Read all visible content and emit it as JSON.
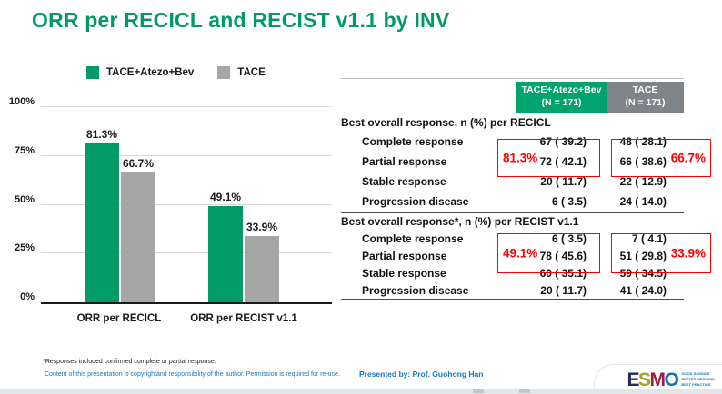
{
  "slide": {
    "title": "ORR per RECICL and RECIST v1.1 by INV",
    "footnote": "*Responses included confirmed complete or partial response.",
    "copyright": "Content of this presentation is copyrightand responsibility of the author. Permission is required for re-use.",
    "presented_by": "Presented by: Prof. Guohong Han"
  },
  "colors": {
    "title_green": "#009A62",
    "bar_green": "#009B66",
    "bar_gray": "#A6A6A6",
    "header_green": "#00A36D",
    "header_gray": "#7E8487",
    "highlight_red": "#FB0000",
    "footer_blue": "#1879C0"
  },
  "chart_data": {
    "type": "bar",
    "title": "",
    "categories": [
      "ORR per RECICL",
      "ORR per RECIST v1.1"
    ],
    "series": [
      {
        "name": "TACE+Atezo+Bev",
        "color": "#009B66",
        "values": [
          81.3,
          49.1
        ],
        "labels": [
          "81.3%",
          "49.1%"
        ]
      },
      {
        "name": "TACE",
        "color": "#A6A6A6",
        "values": [
          66.7,
          33.9
        ],
        "labels": [
          "66.7%",
          "33.9%"
        ]
      }
    ],
    "xlabel": "",
    "ylabel": "",
    "ylim": [
      0,
      100
    ],
    "ytick_values": [
      0,
      25,
      50,
      75,
      100
    ],
    "yticks": [
      "0%",
      "25%",
      "50%",
      "75%",
      "100%"
    ],
    "grid": true,
    "legend_position": "top"
  },
  "table": {
    "header": {
      "arm1_line1": "TACE+Atezo+Bev",
      "arm1_line2": "(N = 171)",
      "arm2_line1": "TACE",
      "arm2_line2": "(N = 171)"
    },
    "sections": [
      {
        "title": "Best overall response, n (%) per RECICL",
        "rows": [
          {
            "label": "Complete response",
            "v1": "67 ( 39.2)",
            "v2": "48 ( 28.1)"
          },
          {
            "label": "Partial response",
            "v1": "72 ( 42.1)",
            "v2": "66 ( 38.6)"
          },
          {
            "label": "Stable response",
            "v1": "20 ( 11.7)",
            "v2": "22 ( 12.9)"
          },
          {
            "label": "Progression disease",
            "v1": "6 ( 3.5)",
            "v2": "24 ( 14.0)"
          }
        ],
        "orr_arm1": "81.3%",
        "orr_arm2": "66.7%"
      },
      {
        "title": "Best overall response*, n (%) per RECIST v1.1",
        "rows": [
          {
            "label": "Complete response",
            "v1": "6 ( 3.5)",
            "v2": "7 ( 4.1)"
          },
          {
            "label": "Partial response",
            "v1": "78 ( 45.6)",
            "v2": "51 ( 29.8)"
          },
          {
            "label": "Stable response",
            "v1": "60 ( 35.1)",
            "v2": "59 ( 34.5)"
          },
          {
            "label": "Progression disease",
            "v1": "20 ( 11.7)",
            "v2": "41 ( 24.0)"
          }
        ],
        "orr_arm1": "49.1%",
        "orr_arm2": "33.9%"
      }
    ]
  },
  "logo": {
    "letters": [
      {
        "char": "E",
        "color": "#232A5C"
      },
      {
        "char": "S",
        "color": "#A2A41B"
      },
      {
        "char": "M",
        "color": "#9D1B3F"
      },
      {
        "char": "O",
        "color": "#1174BB"
      }
    ],
    "tagline": [
      "GOOD SCIENCE",
      "BETTER MEDICINE",
      "BEST PRACTICE"
    ]
  }
}
